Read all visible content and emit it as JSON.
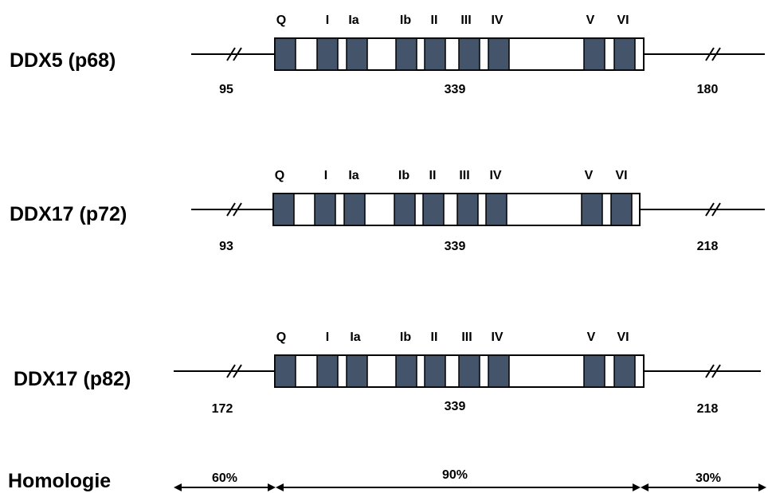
{
  "proteins": [
    {
      "name": "DDX5 (p68)",
      "n_term_length": "95",
      "core_length": "339",
      "c_term_length": "180",
      "motifs": [
        "Q",
        "I",
        "Ia",
        "Ib",
        "II",
        "III",
        "IV",
        "V",
        "VI"
      ]
    },
    {
      "name": "DDX17 (p72)",
      "n_term_length": "93",
      "core_length": "339",
      "c_term_length": "218",
      "motifs": [
        "Q",
        "I",
        "Ia",
        "Ib",
        "II",
        "III",
        "IV",
        "V",
        "VI"
      ]
    },
    {
      "name": "DDX17 (p82)",
      "n_term_length": "172",
      "core_length": "339",
      "c_term_length": "218",
      "motifs": [
        "Q",
        "I",
        "Ia",
        "Ib",
        "II",
        "III",
        "IV",
        "V",
        "VI"
      ]
    }
  ],
  "homology": {
    "label": "Homologie",
    "n_term": "60%",
    "core": "90%",
    "c_term": "30%"
  },
  "colors": {
    "motif_fill": "#44546a",
    "line": "#000000"
  }
}
